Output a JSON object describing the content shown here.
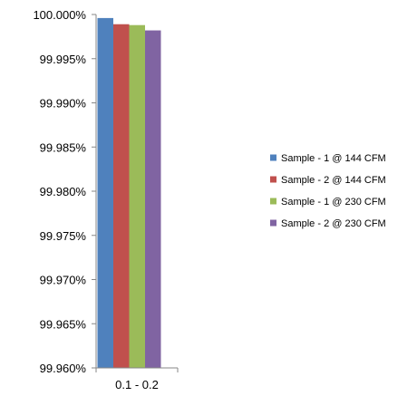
{
  "chart_data": {
    "type": "bar",
    "categories": [
      "0.1 - 0.2"
    ],
    "series": [
      {
        "name": "Sample - 1 @ 144 CFM",
        "values": [
          99.9996
        ],
        "color": "#4F81BD"
      },
      {
        "name": "Sample - 2 @ 144 CFM",
        "values": [
          99.9989
        ],
        "color": "#C0504D"
      },
      {
        "name": "Sample - 1 @ 230 CFM",
        "values": [
          99.9988
        ],
        "color": "#9BBB59"
      },
      {
        "name": "Sample - 2 @ 230 CFM",
        "values": [
          99.9982
        ],
        "color": "#8064A2"
      }
    ],
    "title": "",
    "xlabel": "",
    "ylabel": "",
    "ylim": [
      99.96,
      100.0
    ],
    "yticks": [
      "100.000%",
      "99.995%",
      "99.990%",
      "99.985%",
      "99.980%",
      "99.975%",
      "99.970%",
      "99.965%",
      "99.960%"
    ],
    "ytick_values": [
      100.0,
      99.995,
      99.99,
      99.985,
      99.98,
      99.975,
      99.97,
      99.965,
      99.96
    ],
    "grid": false,
    "legend": "right"
  }
}
